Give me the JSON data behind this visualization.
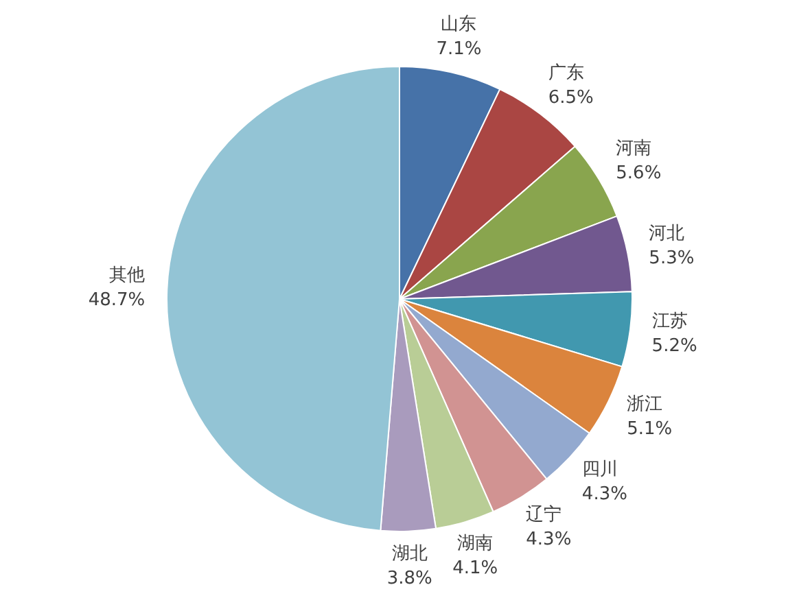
{
  "chart_data": {
    "type": "pie",
    "categories": [
      "山东",
      "广东",
      "河南",
      "河北",
      "江苏",
      "浙江",
      "四川",
      "辽宁",
      "湖南",
      "湖北",
      "其他"
    ],
    "values": [
      7.1,
      6.5,
      5.6,
      5.3,
      5.2,
      5.1,
      4.3,
      4.3,
      4.1,
      3.8,
      48.7
    ],
    "value_labels": [
      "7.1%",
      "6.5%",
      "5.6%",
      "5.3%",
      "5.2%",
      "5.1%",
      "4.3%",
      "4.3%",
      "4.1%",
      "3.8%",
      "48.7%"
    ],
    "colors": [
      "#4672a8",
      "#aa4643",
      "#89a54e",
      "#71588f",
      "#4198af",
      "#db843d",
      "#93a9cf",
      "#d19392",
      "#b9cd96",
      "#a99bbd",
      "#93c4d5"
    ],
    "legend": false
  }
}
